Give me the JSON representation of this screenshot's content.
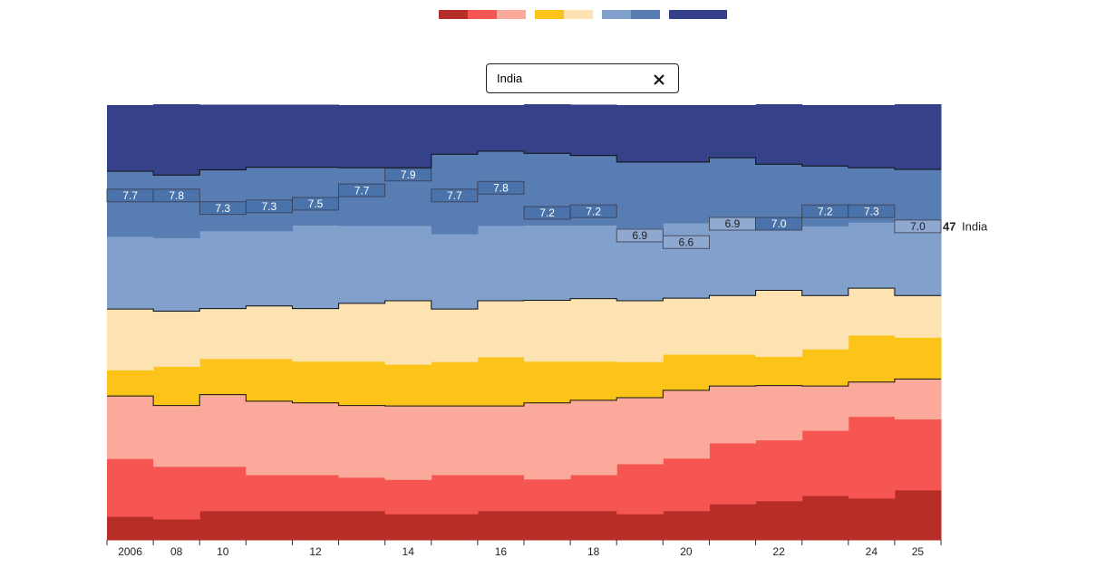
{
  "ui": {
    "search": {
      "value": "India"
    }
  },
  "chart_data": {
    "type": "stacked-step",
    "categories": [
      "2006",
      "08",
      "10",
      null,
      "12",
      null,
      "14",
      null,
      "16",
      null,
      "18",
      null,
      "20",
      null,
      "22",
      null,
      "24",
      "25"
    ],
    "ylim": [
      0,
      100
    ],
    "series": [
      {
        "color": "#b72d28",
        "values": [
          5.4,
          4.8,
          6.7,
          6.7,
          6.7,
          6.7,
          6.0,
          6.0,
          6.7,
          6.7,
          6.7,
          6.0,
          6.7,
          8.3,
          9.0,
          10.2,
          9.6,
          11.5
        ]
      },
      {
        "color": "#f55651",
        "values": [
          13.3,
          12.1,
          10.2,
          8.3,
          8.3,
          7.7,
          7.9,
          9.0,
          8.3,
          7.3,
          8.3,
          11.5,
          12.1,
          14.0,
          14.0,
          15.0,
          18.8,
          16.3
        ]
      },
      {
        "color": "#faa99b",
        "values": [
          14.4,
          14.0,
          16.5,
          16.9,
          16.5,
          16.5,
          16.9,
          15.8,
          15.8,
          17.5,
          17.1,
          15.2,
          15.6,
          13.1,
          12.5,
          10.2,
          7.9,
          9.2
        ]
      },
      {
        "color": "#fcc419",
        "values": [
          6.0,
          9.0,
          8.3,
          9.8,
          9.6,
          10.2,
          9.6,
          10.2,
          11.3,
          9.6,
          9.0,
          8.3,
          8.3,
          7.3,
          6.7,
          8.5,
          10.8,
          9.6
        ]
      },
      {
        "color": "#fde3b2",
        "values": [
          14.0,
          12.7,
          11.5,
          12.1,
          12.1,
          13.3,
          14.6,
          12.1,
          12.9,
          14.0,
          14.4,
          14.0,
          12.9,
          13.5,
          15.2,
          12.3,
          10.8,
          9.6
        ]
      },
      {
        "color": "#82a0cc",
        "values": [
          16.7,
          16.9,
          17.9,
          17.3,
          19.2,
          17.9,
          17.3,
          17.3,
          17.3,
          17.3,
          16.9,
          16.7,
          17.3,
          16.7,
          15.0,
          16.0,
          15.2,
          17.1
        ]
      },
      {
        "color": "#587db2",
        "values": [
          15.0,
          14.4,
          14.0,
          14.6,
          13.3,
          13.3,
          13.3,
          18.3,
          17.1,
          16.5,
          16.0,
          15.2,
          14.0,
          15.0,
          14.0,
          13.8,
          12.5,
          11.9
        ]
      },
      {
        "color": "#354289",
        "values": [
          15.2,
          16.3,
          15.0,
          14.4,
          14.4,
          14.4,
          14.4,
          11.3,
          10.6,
          11.3,
          11.7,
          13.1,
          13.1,
          12.1,
          13.8,
          14.0,
          14.4,
          15.0
        ]
      }
    ],
    "highlight": {
      "name": "India",
      "rank": 47,
      "values": [
        7.7,
        7.8,
        7.3,
        7.3,
        7.5,
        7.7,
        7.9,
        7.7,
        7.8,
        7.2,
        7.2,
        6.9,
        6.6,
        6.9,
        7.0,
        7.2,
        7.3,
        7.0
      ],
      "value_labels": [
        "7.7",
        "7.8",
        "7.3",
        "7.3",
        "7.5",
        "7.7",
        "7.9",
        "7.7",
        "7.8",
        "7.2",
        "7.2",
        "6.9",
        "6.6",
        "6.9",
        "7.0",
        "7.2",
        "7.3",
        "7.0"
      ],
      "share_below": [
        79.2,
        79.2,
        76.3,
        76.7,
        77.3,
        80.4,
        84.0,
        79.2,
        81.0,
        75.2,
        75.6,
        70.0,
        68.5,
        72.7,
        72.7,
        75.6,
        75.6,
        72.1
      ]
    }
  }
}
